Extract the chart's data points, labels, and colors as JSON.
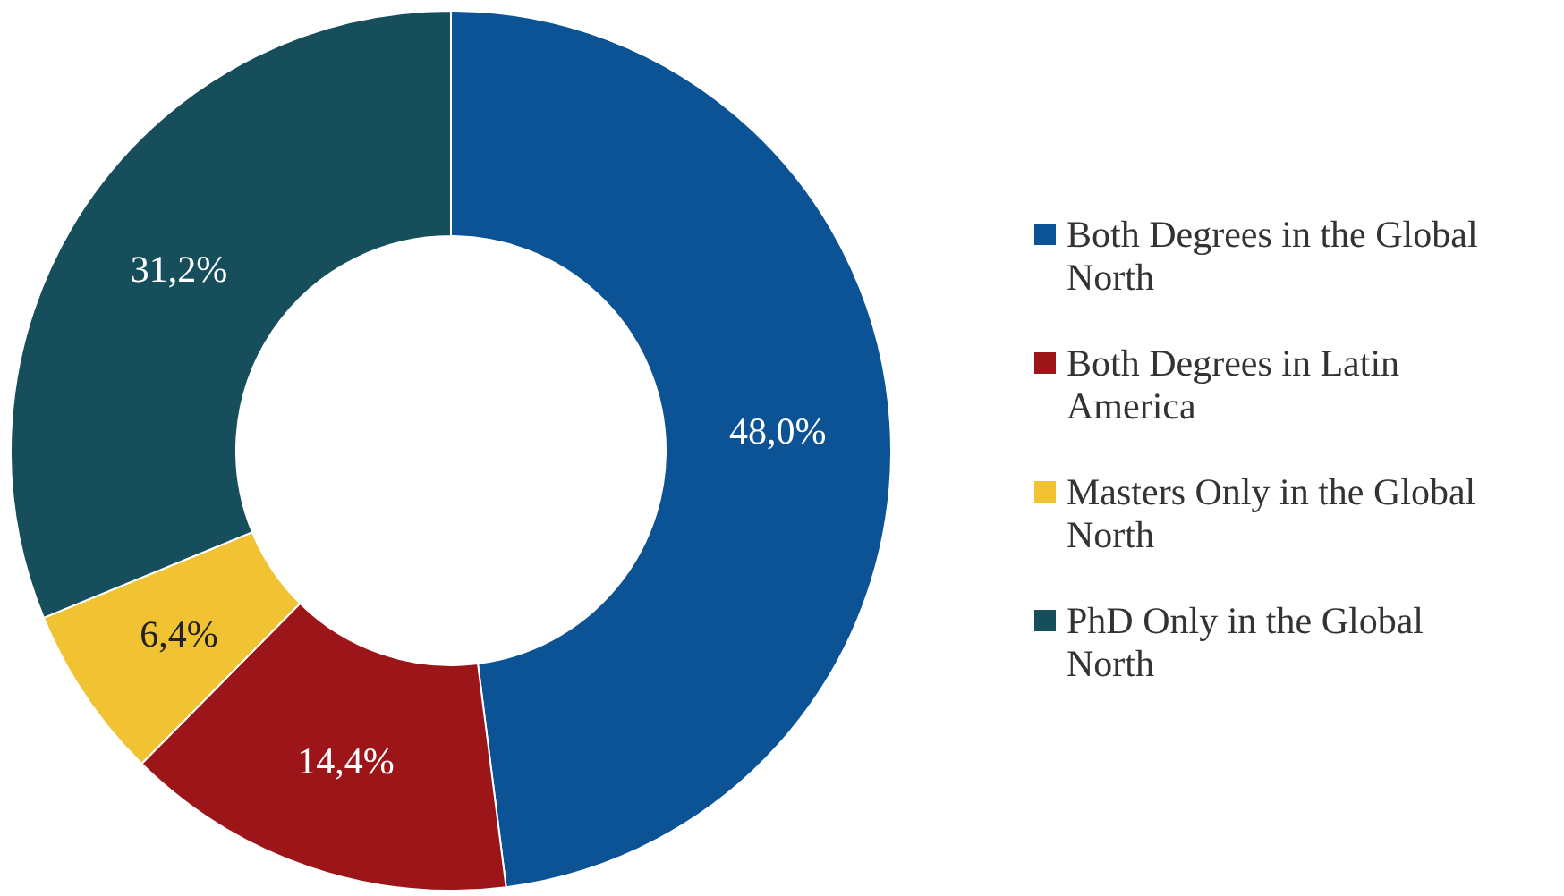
{
  "chart_data": {
    "type": "donut",
    "categories": [
      "Both Degrees in the Global North",
      "Both Degrees in Latin America",
      "Masters Only in the Global North",
      "PhD Only in the Global North"
    ],
    "values": [
      48.0,
      14.4,
      6.4,
      31.2
    ],
    "colors": [
      "#0b5394",
      "#9b1519",
      "#f1c232",
      "#174e5c"
    ],
    "value_labels": [
      "48,0%",
      "14,4%",
      "6,4%",
      "31,2%"
    ],
    "legend": "right"
  }
}
